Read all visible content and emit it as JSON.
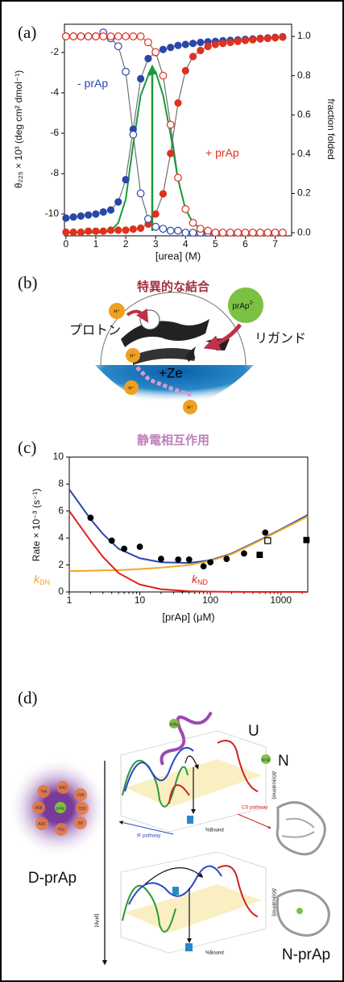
{
  "panels": {
    "a": "(a)",
    "b": "(b)",
    "c": "(c)",
    "d": "(d)"
  },
  "chart_data": [
    {
      "type": "line",
      "x_label": "[urea] (M)",
      "y_label": "θ₂₂₅ × 10³ (deg cm² dmol⁻¹)",
      "y2_label": "fraction folded",
      "xlim": [
        -0.05,
        7.55
      ],
      "xticks": [
        0,
        1,
        2,
        3,
        4,
        5,
        6,
        7
      ],
      "ylim": [
        -11.08,
        -0.6
      ],
      "yticks": [
        -10,
        -8,
        -6,
        -4,
        -2
      ],
      "y2lim": [
        -0.016,
        1.062
      ],
      "y2ticks": [
        {
          "value": 0,
          "label": "0.0"
        },
        {
          "value": 0.2,
          "label": "0.2"
        },
        {
          "value": 0.4,
          "label": "0.4"
        },
        {
          "value": 0.6,
          "label": "0.6"
        },
        {
          "value": 0.8,
          "label": "0.8"
        },
        {
          "value": 1,
          "label": "1.0"
        }
      ],
      "grid": false,
      "x": [
        0,
        0.25,
        0.5,
        0.75,
        1,
        1.25,
        1.5,
        1.75,
        2,
        2.25,
        2.5,
        2.75,
        3,
        3.25,
        3.5,
        3.75,
        4,
        4.25,
        4.5,
        4.75,
        5,
        5.25,
        5.5,
        5.75,
        6,
        6.25,
        6.5,
        6.75,
        7,
        7.25
      ],
      "series": [
        {
          "color": "#2a46a8",
          "marker": "circle",
          "open": false,
          "line_color": "#666666",
          "values": [
            -10.2,
            -10.15,
            -10.1,
            -10.05,
            -10.0,
            -9.9,
            -9.8,
            -9.4,
            -8.3,
            -5.8,
            -3.3,
            -2.3,
            -2.0,
            -1.85,
            -1.75,
            -1.65,
            -1.6,
            -1.55,
            -1.5,
            -1.47,
            -1.45,
            -1.42,
            -1.4,
            -1.38,
            -1.35,
            -1.33,
            -1.3,
            -1.28,
            -1.25,
            -1.22
          ]
        },
        {
          "color": "#e0301e",
          "marker": "circle",
          "open": false,
          "line_color": "#666666",
          "values": [
            -10.9,
            -10.9,
            -10.9,
            -10.85,
            -10.85,
            -10.85,
            -10.8,
            -10.8,
            -10.8,
            -10.75,
            -10.7,
            -10.5,
            -10.0,
            -9.0,
            -7.0,
            -4.5,
            -2.9,
            -2.2,
            -1.9,
            -1.7,
            -1.6,
            -1.55,
            -1.5,
            -1.45,
            -1.4,
            -1.37,
            -1.33,
            -1.3,
            -1.27,
            -1.24
          ]
        },
        {
          "color": "#2a46a8",
          "marker": "circle",
          "open": true,
          "line_color": "#666666",
          "axis": "y2",
          "values": [
            1.0,
            1.0,
            1.0,
            1.0,
            1.0,
            1.02,
            0.99,
            0.95,
            0.82,
            0.5,
            0.2,
            0.07,
            0.03,
            0.02,
            0.01,
            0.01,
            0,
            0,
            0,
            0,
            0,
            0,
            0,
            0,
            0,
            0,
            0,
            0,
            0,
            0
          ]
        },
        {
          "color": "#e0301e",
          "marker": "circle",
          "open": true,
          "line_color": "#666666",
          "axis": "y2",
          "values": [
            1.0,
            1.0,
            1.0,
            1.0,
            1.0,
            1.0,
            1.0,
            1.0,
            1.0,
            1.0,
            1.0,
            0.97,
            0.92,
            0.8,
            0.55,
            0.28,
            0.12,
            0.05,
            0.02,
            0.01,
            0,
            0,
            0,
            0,
            0,
            0,
            0,
            0,
            0,
            0
          ]
        },
        {
          "color": "#1a9a3a",
          "marker": "none",
          "line_color": "#1a9a3a",
          "axis": "y2",
          "values": [
            0,
            0,
            0,
            0,
            0,
            0,
            0.01,
            0.05,
            0.17,
            0.45,
            0.7,
            0.8,
            0.82,
            0.7,
            0.5,
            0.27,
            0.12,
            0.05,
            0.02,
            0.01,
            0,
            0,
            0,
            0,
            0,
            0,
            0,
            0,
            0,
            0
          ]
        }
      ],
      "annotations": [
        {
          "text": "- prAp",
          "color": "#2a46a8"
        },
        {
          "text": "+ prAp",
          "color": "#e0301e"
        }
      ]
    },
    {
      "type": "line",
      "xscale": "log",
      "x_label": "[prAp] (μM)",
      "y_label": "Rate × 10⁻³ (s⁻¹)",
      "xlim": [
        1,
        2400
      ],
      "xticks": [
        1,
        10,
        100,
        1000
      ],
      "ylim": [
        0,
        10
      ],
      "yticks": [
        0,
        2,
        4,
        6,
        8,
        10
      ],
      "grid": false,
      "series": [
        {
          "color": "#2a46a8",
          "marker": "none",
          "line_color": "#2a46a8",
          "x": [
            1,
            2,
            3,
            5,
            10,
            20,
            50,
            100,
            200,
            500,
            1000,
            2400
          ],
          "values": [
            7.6,
            5.4,
            4.3,
            3.2,
            2.5,
            2.2,
            2.15,
            2.35,
            2.85,
            3.85,
            4.65,
            5.7
          ]
        },
        {
          "color": "#f0a820",
          "marker": "none",
          "line_color": "#f0a820",
          "x": [
            1,
            2,
            3,
            5,
            10,
            20,
            50,
            100,
            200,
            500,
            1000,
            2400
          ],
          "values": [
            1.55,
            1.57,
            1.6,
            1.62,
            1.7,
            1.8,
            2.0,
            2.3,
            2.8,
            3.8,
            4.6,
            5.6
          ]
        },
        {
          "color": "#e0201e",
          "marker": "none",
          "line_color": "#e0201e",
          "x": [
            1,
            2,
            3,
            5,
            10,
            20,
            50,
            100,
            200,
            500,
            1000,
            2400
          ],
          "values": [
            6.0,
            3.8,
            2.6,
            1.4,
            0.55,
            0.2,
            0.05,
            0.02,
            0.01,
            0,
            0,
            0
          ]
        },
        {
          "color": "#000000",
          "marker": "circle",
          "open": false,
          "x": [
            2,
            4,
            6,
            10,
            20,
            35,
            50,
            80,
            100,
            170,
            300,
            600
          ],
          "values": [
            5.5,
            3.8,
            3.2,
            3.35,
            2.45,
            2.4,
            2.4,
            1.9,
            2.2,
            2.45,
            2.85,
            4.4
          ]
        },
        {
          "color": "#000000",
          "marker": "square",
          "open": false,
          "x": [
            500,
            2300
          ],
          "values": [
            2.75,
            3.85
          ]
        },
        {
          "color": "#000000",
          "marker": "square",
          "open": true,
          "x": [
            650
          ],
          "values": [
            3.8
          ]
        }
      ],
      "annotations": [
        {
          "text": "k",
          "sub": "DN",
          "color": "#f0a820"
        },
        {
          "text": "k",
          "sub": "ND",
          "color": "#e0201e"
        }
      ]
    }
  ],
  "diagram_b": {
    "title": "特異的な結合",
    "proton": "プロトン",
    "ligand": "リガンド",
    "ligand_name": "prAp",
    "ligand_charge": "2-",
    "charge": "+Ze",
    "bottom": "静電相互作用",
    "protons": [
      "H⁺",
      "H⁺",
      "H⁺",
      "H⁺"
    ]
  },
  "diagram_d": {
    "unfolded": "U",
    "native": "N",
    "ligand": [
      "prAp",
      "prAp"
    ],
    "complex_d": "D-prAp",
    "complex_n": "N-prAp",
    "axis": "[prAp]",
    "bound_axis": [
      "%Bound",
      "%Bound"
    ],
    "if_pathway": "IF pathway",
    "cs_pathway": "CS pathway",
    "energy_axis": [
      "ΔG(kcal/mol)",
      "ΔG(kcal/mol)"
    ],
    "residues": [
      "E43",
      "T44",
      "V39",
      "A58",
      "Y53",
      "A90",
      "Y51",
      "I92"
    ],
    "center": "prAp"
  }
}
